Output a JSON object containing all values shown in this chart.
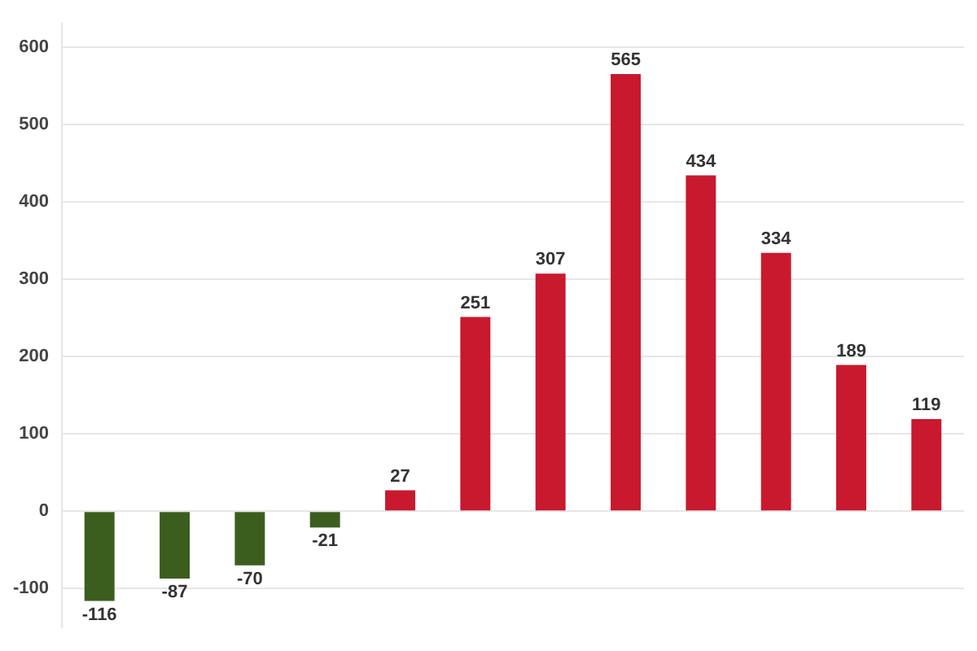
{
  "chart_data": {
    "type": "bar",
    "categories": [
      null,
      null,
      null,
      null,
      null,
      null,
      null,
      null,
      null,
      null,
      null,
      null
    ],
    "values": [
      -116,
      -87,
      -70,
      -21,
      27,
      251,
      307,
      565,
      434,
      334,
      189,
      119
    ],
    "colors": [
      "#3b5e1f",
      "#3b5e1f",
      "#3b5e1f",
      "#3b5e1f",
      "#c8192e",
      "#c8192e",
      "#c8192e",
      "#c8192e",
      "#c8192e",
      "#c8192e",
      "#c8192e",
      "#c8192e"
    ],
    "ylim": [
      -150,
      630
    ],
    "yticks": [
      -100,
      0,
      100,
      200,
      300,
      400,
      500,
      600
    ],
    "grid": "y",
    "data_labels": true
  }
}
